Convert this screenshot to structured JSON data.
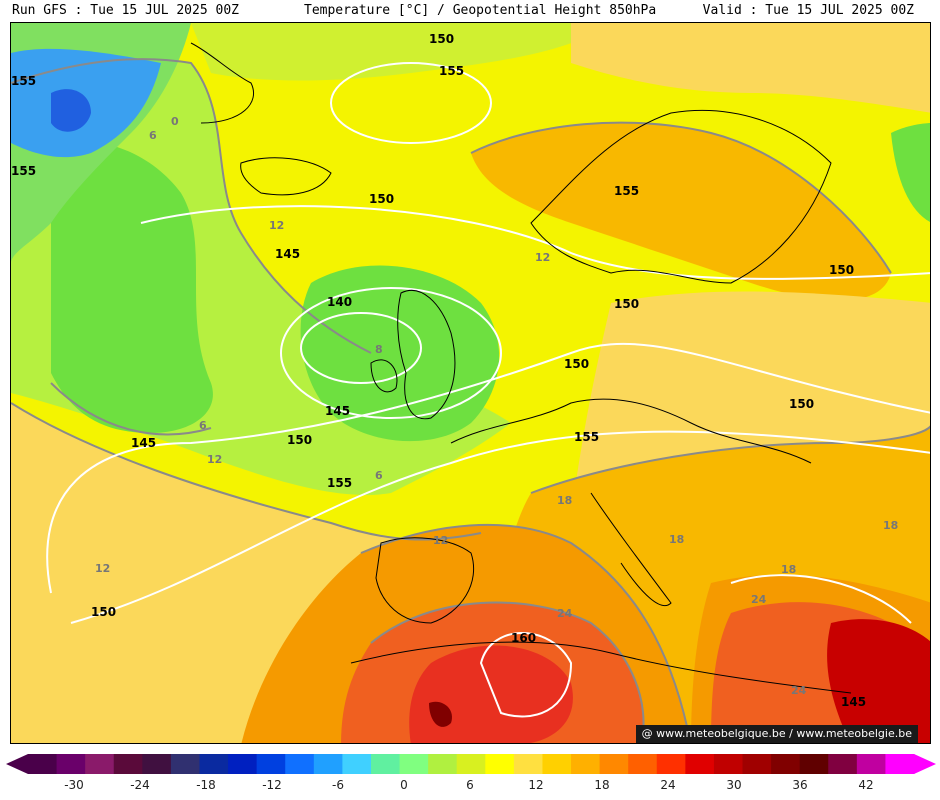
{
  "header": {
    "run": "Run GFS : Tue 15 JUL 2025 00Z",
    "title": "Temperature [°C] / Geopotential Height 850hPa",
    "valid": "Valid : Tue 15 JUL 2025 00Z"
  },
  "credit": "@ www.meteobelgique.be / www.meteobelgie.be",
  "colorbar": {
    "ticks": [
      "-30",
      "-24",
      "-18",
      "-12",
      "-6",
      "0",
      "6",
      "12",
      "18",
      "24",
      "30",
      "36",
      "42"
    ],
    "colors": [
      "#4a004a",
      "#6a006a",
      "#8a1a6a",
      "#5a0a3a",
      "#401040",
      "#303070",
      "#0a2aa0",
      "#0020c0",
      "#0040e0",
      "#1070ff",
      "#20a0ff",
      "#40d0ff",
      "#60f0a0",
      "#80ff80",
      "#b0f040",
      "#d8f020",
      "#ffff00",
      "#ffe040",
      "#ffd000",
      "#ffb000",
      "#ff8800",
      "#ff6000",
      "#ff3000",
      "#e00000",
      "#c00000",
      "#a00000",
      "#800000",
      "#600000",
      "#800040",
      "#c000a0",
      "#ff00ff"
    ]
  },
  "height_labels": [
    "150",
    "155",
    "155",
    "150",
    "145",
    "140",
    "145",
    "145",
    "150",
    "155",
    "150",
    "160",
    "145",
    "150",
    "150",
    "155",
    "150",
    "155",
    "150",
    "155"
  ],
  "temp_labels": [
    "12",
    "12",
    "8",
    "6",
    "12",
    "6",
    "12",
    "12",
    "18",
    "18",
    "18",
    "24",
    "24",
    "24",
    "18",
    "0",
    "6"
  ],
  "map_colors": {
    "cold": "#3aa0f0",
    "cool": "#50d8a8",
    "green": "#6ee040",
    "lightgreen": "#a8f040",
    "yellowgreen": "#d0f030",
    "yellow": "#f4f400",
    "lightorange": "#fbd85a",
    "orange": "#f8b800",
    "deeporange": "#f59a00",
    "red": "#f06020",
    "hot": "#e83020",
    "veryhot": "#c80000"
  }
}
